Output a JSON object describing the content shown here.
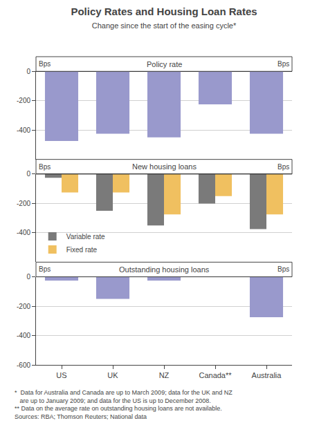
{
  "title": "Policy Rates and Housing Loan Rates",
  "subtitle": "Change since the start of the easing cycle*",
  "footnote": "*  Data for Australia and Canada are up to March 2009; data for the UK and NZ\n   are up to January 2009; and data for the US is up to December 2008.\n** Data on the average rate on outstanding housing loans are not available.\nSources: RBA; Thomson Reuters; National data",
  "chart_data": [
    {
      "type": "bar",
      "title": "Policy rate",
      "ylabel": "Bps",
      "categories": [
        "US",
        "UK",
        "NZ",
        "Canada**",
        "Australia"
      ],
      "values": [
        -475,
        -425,
        -450,
        -225,
        -425
      ],
      "color": "#9999cc",
      "ylim": [
        -600,
        0
      ],
      "yticks": [
        0,
        -200,
        -400
      ],
      "grid": true
    },
    {
      "type": "bar",
      "title": "New housing loans",
      "ylabel": "Bps",
      "categories": [
        "US",
        "UK",
        "NZ",
        "Canada**",
        "Australia"
      ],
      "series": [
        {
          "name": "Variable rate",
          "color": "#7a7a7a",
          "values": [
            -25,
            -250,
            -350,
            -200,
            -375
          ]
        },
        {
          "name": "Fixed rate",
          "color": "#f0c060",
          "values": [
            -125,
            -125,
            -275,
            -150,
            -275
          ]
        }
      ],
      "ylim": [
        -600,
        0
      ],
      "yticks": [
        0,
        -200,
        -400
      ],
      "grid": true,
      "legend": "lower left"
    },
    {
      "type": "bar",
      "title": "Outstanding housing loans",
      "ylabel": "Bps",
      "categories": [
        "US",
        "UK",
        "NZ",
        "Canada**",
        "Australia"
      ],
      "values": [
        -25,
        -150,
        -25,
        null,
        -275
      ],
      "color": "#9999cc",
      "ylim": [
        -600,
        0
      ],
      "yticks": [
        0,
        -200,
        -400,
        -600
      ],
      "grid": true
    }
  ]
}
